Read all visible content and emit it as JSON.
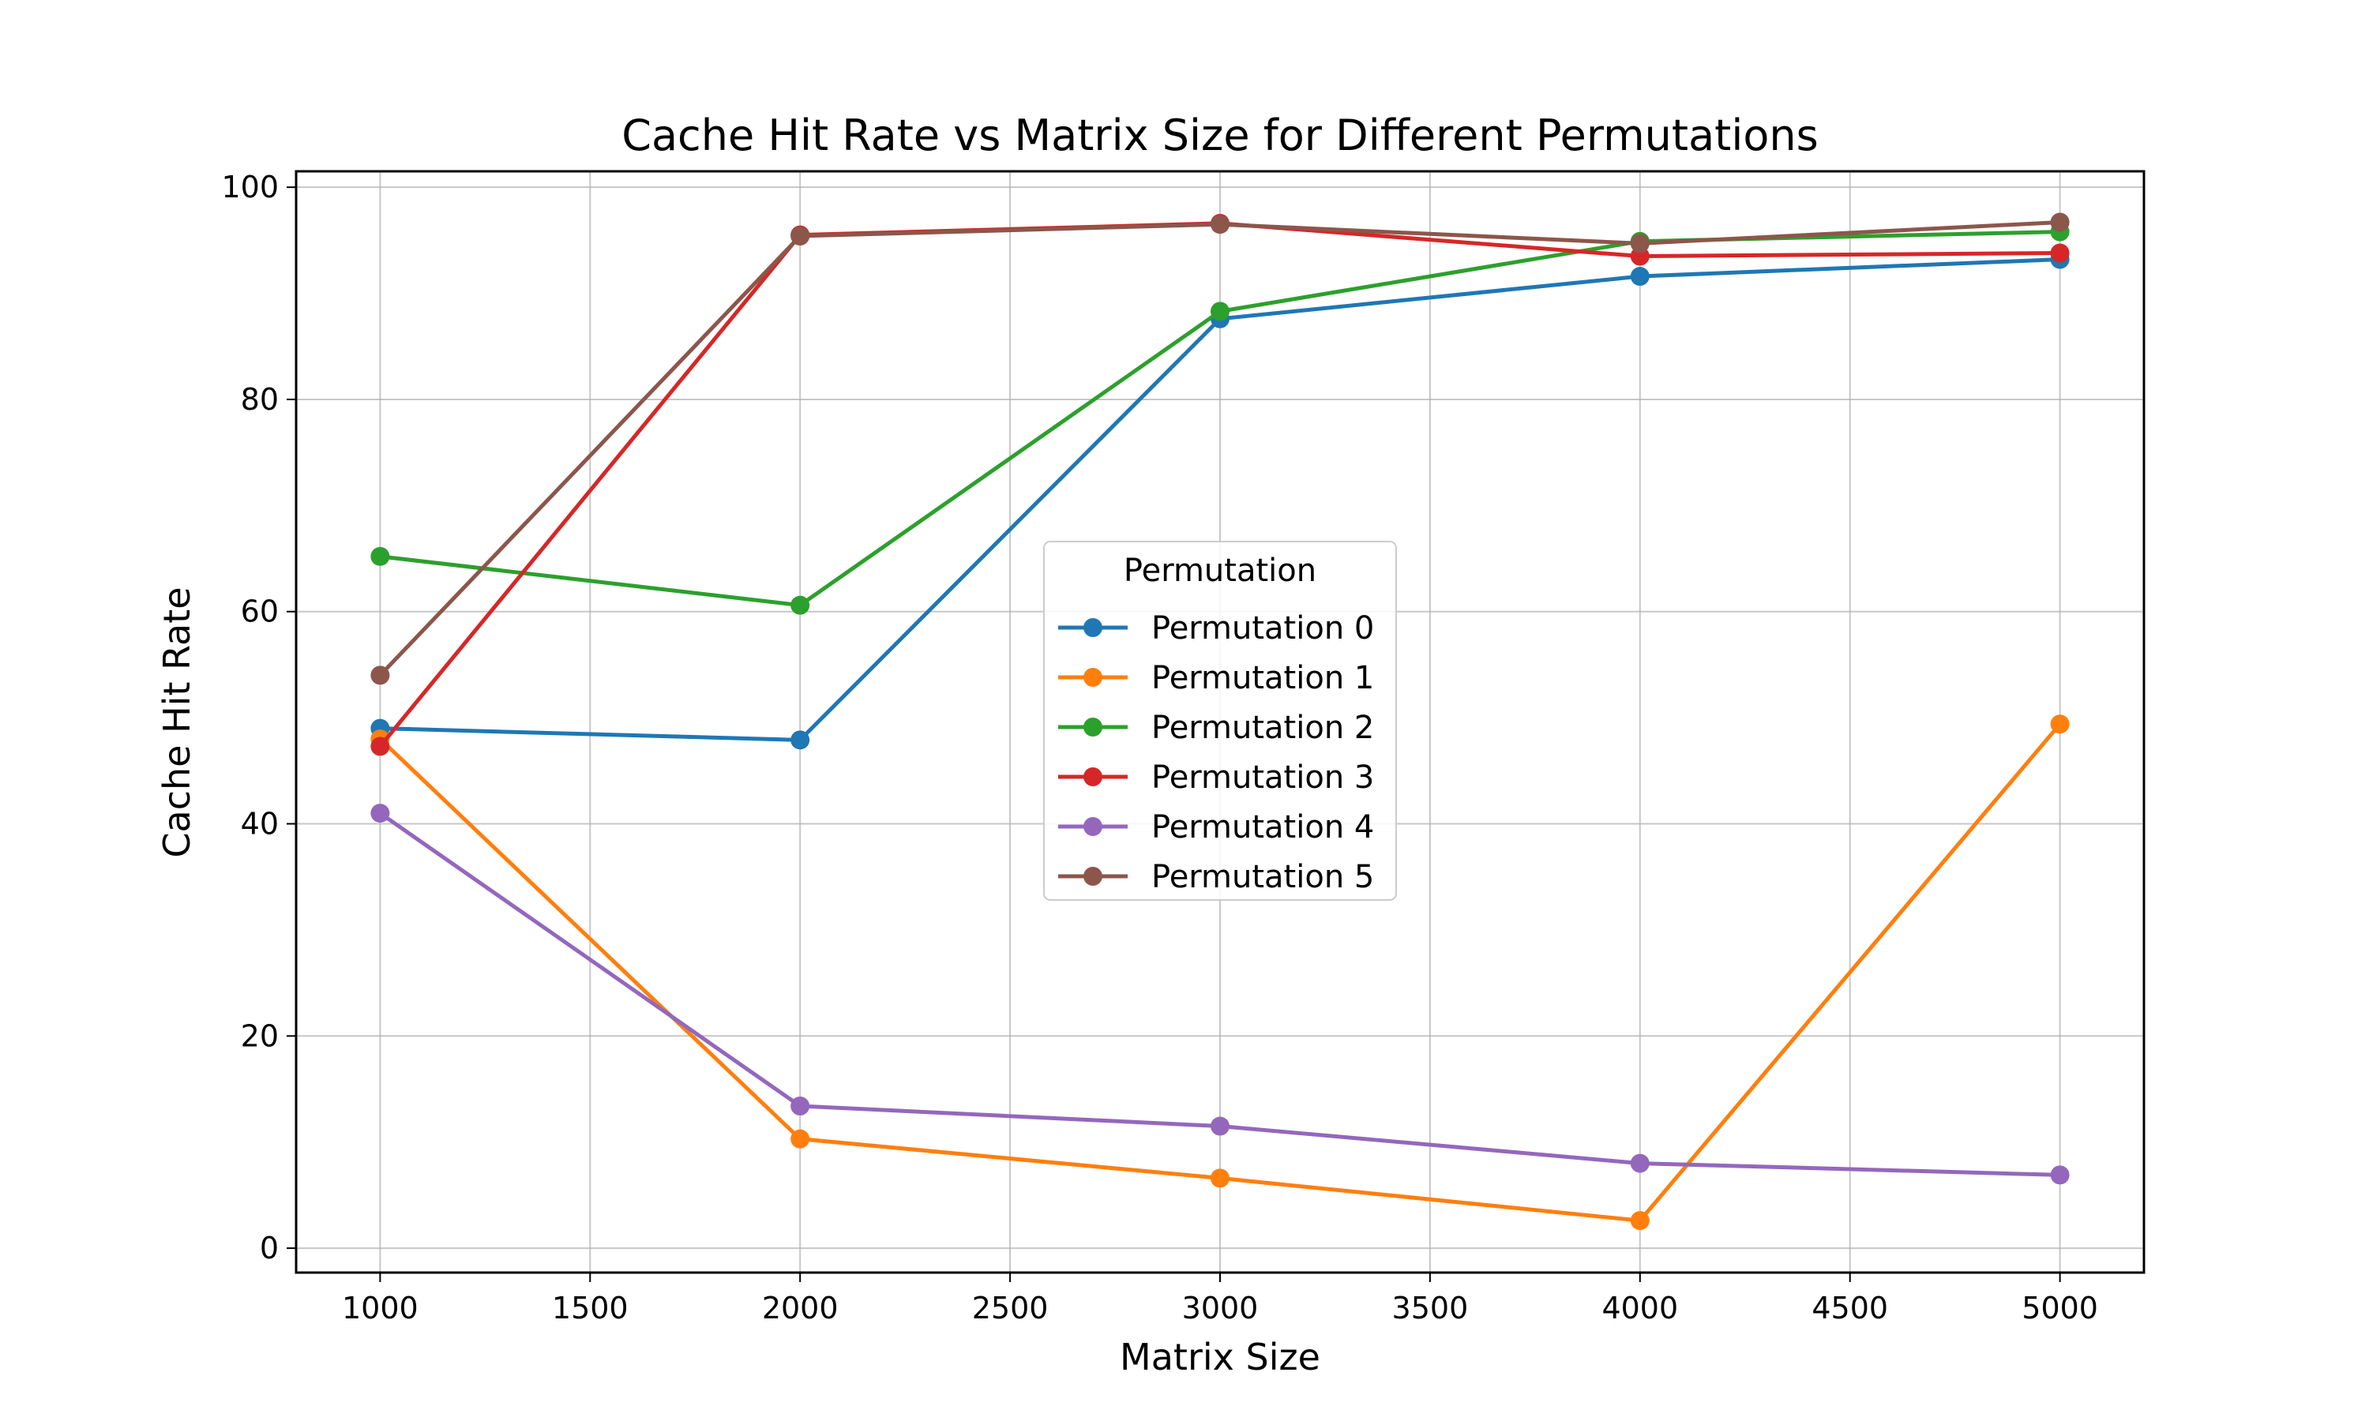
{
  "chart_data": {
    "type": "line",
    "title": "Cache Hit Rate vs Matrix Size for Different Permutations",
    "xlabel": "Matrix Size",
    "ylabel": "Cache Hit Rate",
    "xlim": [
      800,
      5200
    ],
    "ylim": [
      -2.3,
      101.5
    ],
    "xticks": [
      1000,
      1500,
      2000,
      2500,
      3000,
      3500,
      4000,
      4500,
      5000
    ],
    "yticks": [
      0,
      20,
      40,
      60,
      80,
      100
    ],
    "grid": true,
    "legend": {
      "title": "Permutation",
      "placement": "center"
    },
    "x": [
      1000,
      2000,
      3000,
      4000,
      5000
    ],
    "series": [
      {
        "name": "Permutation 0",
        "color": "#1f77b4",
        "values": [
          49.0,
          47.9,
          87.6,
          91.6,
          93.2
        ]
      },
      {
        "name": "Permutation 1",
        "color": "#ff7f0e",
        "values": [
          48.0,
          10.3,
          6.6,
          2.6,
          49.4
        ]
      },
      {
        "name": "Permutation 2",
        "color": "#2ca02c",
        "values": [
          65.2,
          60.6,
          88.3,
          94.9,
          95.8
        ]
      },
      {
        "name": "Permutation 3",
        "color": "#d62728",
        "values": [
          47.3,
          95.5,
          96.6,
          93.5,
          93.8
        ]
      },
      {
        "name": "Permutation 4",
        "color": "#9467bd",
        "values": [
          41.0,
          13.4,
          11.5,
          8.0,
          6.9
        ]
      },
      {
        "name": "Permutation 5",
        "color": "#8c564b",
        "values": [
          54.0,
          95.4,
          96.5,
          94.7,
          96.7
        ]
      }
    ]
  }
}
